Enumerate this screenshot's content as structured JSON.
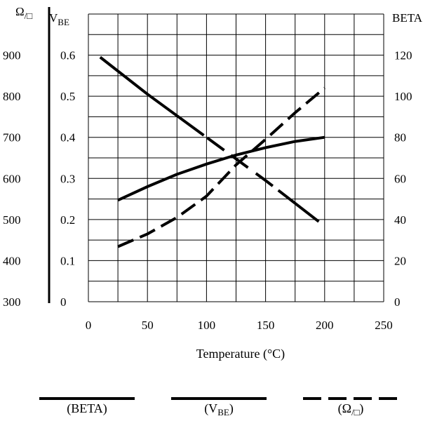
{
  "chart_data": {
    "type": "line",
    "xlabel": "Temperature (°C)",
    "xlim": [
      0,
      250
    ],
    "x_ticks": [
      "0",
      "50",
      "100",
      "150",
      "200",
      "250"
    ],
    "grid": true,
    "axes": {
      "sheet_resistance": {
        "label": "Ω",
        "label_sub": "/□",
        "lim": [
          300,
          1000
        ],
        "ticks": [
          "300",
          "400",
          "500",
          "600",
          "700",
          "800",
          "900"
        ]
      },
      "vbe": {
        "label": "V",
        "label_sub": "BE",
        "lim": [
          0,
          0.7
        ],
        "ticks": [
          "0",
          "0.1",
          "0.2",
          "0.3",
          "0.4",
          "0.5",
          "0.6"
        ]
      },
      "beta": {
        "label": "BETA",
        "lim": [
          0,
          140
        ],
        "ticks": [
          "0",
          "20",
          "40",
          "60",
          "80",
          "100",
          "120"
        ]
      }
    },
    "series": [
      {
        "name": "(BETA)",
        "axis": "beta",
        "style": "solid-falling",
        "x": [
          10,
          50,
          100,
          150,
          195
        ],
        "y": [
          119,
          101,
          80,
          59,
          39
        ]
      },
      {
        "name": "(VBE)",
        "axis": "vbe",
        "style": "solid",
        "x": [
          25,
          50,
          75,
          100,
          125,
          150,
          175,
          200
        ],
        "y": [
          0.247,
          0.28,
          0.31,
          0.335,
          0.357,
          0.375,
          0.39,
          0.4
        ]
      },
      {
        "name": "(Ω/□)",
        "axis": "sheet_resistance",
        "style": "dashed",
        "x": [
          25,
          50,
          75,
          100,
          125,
          150,
          175,
          200
        ],
        "y": [
          434,
          465,
          505,
          557,
          633,
          695,
          760,
          820
        ]
      }
    ]
  },
  "legend": [
    {
      "key": "beta",
      "label": "(BETA)",
      "label_main": "(BETA)",
      "label_sub": "",
      "label_end": "",
      "dash": false
    },
    {
      "key": "vbe",
      "label": "(VBE)",
      "label_main": "(V",
      "label_sub": "BE",
      "label_end": ")",
      "dash": false
    },
    {
      "key": "ohm",
      "label": "(Ω/□)",
      "label_main": "(Ω",
      "label_sub": "/□",
      "label_end": ")",
      "dash": true
    }
  ]
}
